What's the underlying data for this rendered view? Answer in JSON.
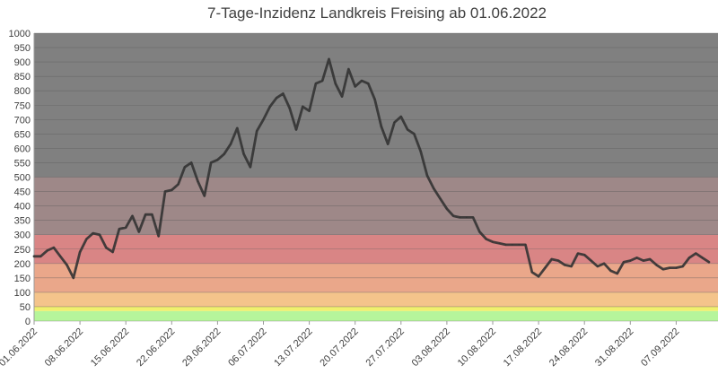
{
  "chart_data": {
    "type": "line",
    "title": "7-Tage-Inzidenz Landkreis Freising ab 01.06.2022",
    "xlabel": "",
    "ylabel": "",
    "ylim": [
      0,
      1000
    ],
    "y_ticks": [
      0,
      50,
      100,
      150,
      200,
      250,
      300,
      350,
      400,
      450,
      500,
      550,
      600,
      650,
      700,
      750,
      800,
      850,
      900,
      950,
      1000
    ],
    "x_tick_labels": [
      "01.06.2022",
      "08.06.2022",
      "15.06.2022",
      "22.06.2022",
      "29.06.2022",
      "06.07.2022",
      "13.07.2022",
      "20.07.2022",
      "27.07.2022",
      "03.08.2022",
      "10.08.2022",
      "17.08.2022",
      "24.08.2022",
      "31.08.2022",
      "07.09.2022"
    ],
    "x_start_date": "01.06.2022",
    "grid": true,
    "background_bands": [
      {
        "from": 0,
        "to": 35,
        "color": "#b6f59b"
      },
      {
        "from": 35,
        "to": 50,
        "color": "#f0f06e"
      },
      {
        "from": 50,
        "to": 100,
        "color": "#f4c48b"
      },
      {
        "from": 100,
        "to": 200,
        "color": "#eaa78a"
      },
      {
        "from": 200,
        "to": 300,
        "color": "#d98585"
      },
      {
        "from": 300,
        "to": 500,
        "color": "#9e8888"
      },
      {
        "from": 500,
        "to": 1000,
        "color": "#808080"
      }
    ],
    "series": [
      {
        "color": "#333333",
        "values": [
          225,
          225,
          245,
          255,
          225,
          195,
          150,
          240,
          285,
          305,
          300,
          255,
          240,
          320,
          325,
          365,
          310,
          370,
          370,
          295,
          450,
          455,
          475,
          535,
          550,
          485,
          435,
          550,
          560,
          580,
          615,
          670,
          580,
          535,
          660,
          700,
          745,
          775,
          790,
          740,
          665,
          745,
          730,
          825,
          835,
          910,
          825,
          780,
          875,
          815,
          835,
          825,
          770,
          675,
          615,
          690,
          710,
          665,
          650,
          590,
          505,
          460,
          425,
          390,
          365,
          360,
          360,
          360,
          310,
          285,
          275,
          270,
          265,
          265,
          265,
          265,
          170,
          155,
          185,
          215,
          210,
          195,
          190,
          235,
          230,
          210,
          190,
          200,
          175,
          165,
          205,
          210,
          220,
          210,
          215,
          195,
          180,
          185,
          185,
          190,
          220,
          235,
          220,
          205
        ]
      }
    ]
  }
}
